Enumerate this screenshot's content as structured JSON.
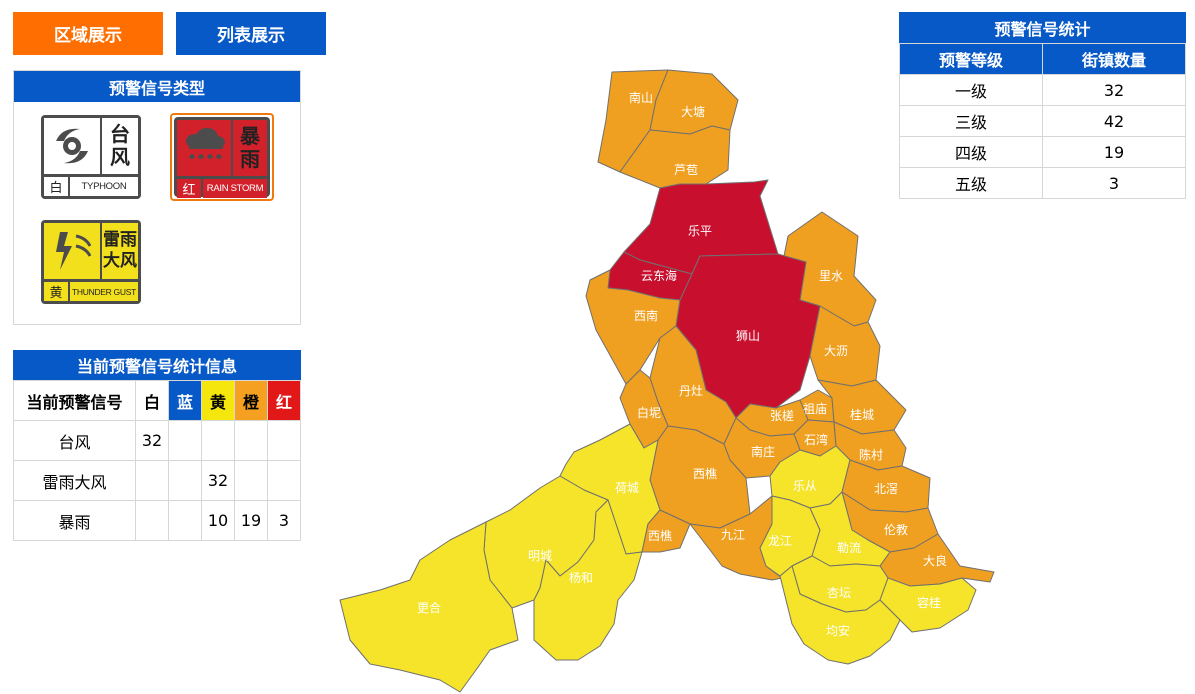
{
  "tabs": {
    "area_label": "区域展示",
    "list_label": "列表展示"
  },
  "types_panel": {
    "title": "预警信号类型",
    "signals": {
      "typhoon": {
        "name_line1": "台",
        "name_line2": "风",
        "level": "白",
        "en": "TYPHOON",
        "icon": "typhoon-icon"
      },
      "rainstorm": {
        "name_line1": "暴",
        "name_line2": "雨",
        "level": "红",
        "en": "RAIN STORM",
        "icon": "rainstorm-icon"
      },
      "thunder_gust": {
        "name_line1": "雷雨",
        "name_line2": "大风",
        "level": "黄",
        "en": "THUNDER GUST",
        "icon": "thunder-gust-icon"
      }
    }
  },
  "stat_panel": {
    "title": "当前预警信号统计信息",
    "header": {
      "signal": "当前预警信号",
      "white": "白",
      "blue": "蓝",
      "yellow": "黄",
      "orange": "橙",
      "red": "红"
    },
    "rows": [
      {
        "name": "台风",
        "white": "32",
        "blue": "",
        "yellow": "",
        "orange": "",
        "red": ""
      },
      {
        "name": "雷雨大风",
        "white": "",
        "blue": "",
        "yellow": "32",
        "orange": "",
        "red": ""
      },
      {
        "name": "暴雨",
        "white": "",
        "blue": "",
        "yellow": "10",
        "orange": "19",
        "red": "3"
      }
    ]
  },
  "warn_panel": {
    "title": "预警信号统计",
    "columns": [
      "预警等级",
      "街镇数量"
    ],
    "rows": [
      {
        "level": "一级",
        "count": "32"
      },
      {
        "level": "三级",
        "count": "42"
      },
      {
        "level": "四级",
        "count": "19"
      },
      {
        "level": "五级",
        "count": "3"
      }
    ]
  },
  "colors": {
    "red": "#c8102e",
    "orange": "#f0a020",
    "yellow": "#f5e42a",
    "border": "#707070",
    "tab_orange": "#ff6e00",
    "tab_blue": "#0759c7"
  },
  "map": {
    "regions": [
      {
        "name": "南山",
        "level": "orange"
      },
      {
        "name": "大塘",
        "level": "orange"
      },
      {
        "name": "芦苞",
        "level": "orange"
      },
      {
        "name": "乐平",
        "level": "red"
      },
      {
        "name": "云东海",
        "level": "red"
      },
      {
        "name": "里水",
        "level": "orange"
      },
      {
        "name": "西南",
        "level": "orange"
      },
      {
        "name": "狮山",
        "level": "red"
      },
      {
        "name": "大沥",
        "level": "orange"
      },
      {
        "name": "丹灶",
        "level": "orange"
      },
      {
        "name": "白坭",
        "level": "orange"
      },
      {
        "name": "张槎",
        "level": "orange"
      },
      {
        "name": "祖庙",
        "level": "orange"
      },
      {
        "name": "桂城",
        "level": "orange"
      },
      {
        "name": "石湾",
        "level": "orange"
      },
      {
        "name": "南庄",
        "level": "orange"
      },
      {
        "name": "陈村",
        "level": "orange"
      },
      {
        "name": "西樵",
        "level": "orange"
      },
      {
        "name": "乐从",
        "level": "yellow"
      },
      {
        "name": "北滘",
        "level": "orange"
      },
      {
        "name": "荷城",
        "level": "yellow"
      },
      {
        "name": "伦教",
        "level": "orange"
      },
      {
        "name": "西樵",
        "level": "orange"
      },
      {
        "name": "九江",
        "level": "orange"
      },
      {
        "name": "龙江",
        "level": "yellow"
      },
      {
        "name": "勒流",
        "level": "yellow"
      },
      {
        "name": "大良",
        "level": "orange"
      },
      {
        "name": "明城",
        "level": "yellow"
      },
      {
        "name": "杨和",
        "level": "yellow"
      },
      {
        "name": "杏坛",
        "level": "yellow"
      },
      {
        "name": "容桂",
        "level": "yellow"
      },
      {
        "name": "更合",
        "level": "yellow"
      },
      {
        "name": "均安",
        "level": "yellow"
      }
    ]
  }
}
